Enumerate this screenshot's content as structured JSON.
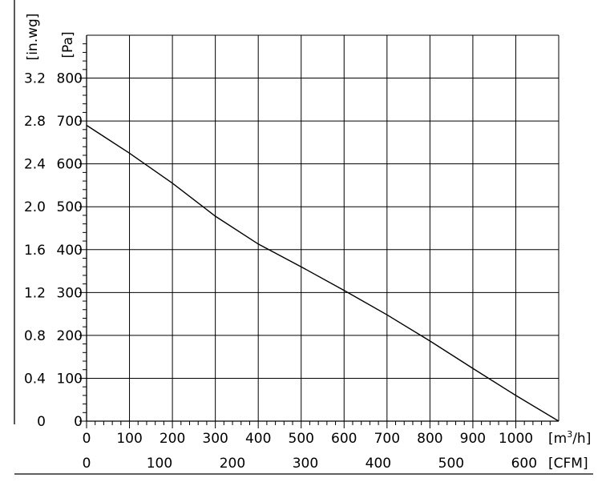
{
  "chart_data": {
    "type": "line",
    "x_primary": {
      "unit_label_prefix": "[m",
      "unit_label_sup": "3",
      "unit_label_suffix": "/h]",
      "range": [
        0,
        1100
      ],
      "ticks": [
        0,
        100,
        200,
        300,
        400,
        500,
        600,
        700,
        800,
        900,
        1000
      ]
    },
    "x_secondary": {
      "unit_label": "[CFM]",
      "ticks": [
        0,
        100,
        200,
        300,
        400,
        500,
        600
      ]
    },
    "y_primary": {
      "unit_label": "[Pa]",
      "range": [
        0,
        900
      ],
      "ticks": [
        0,
        100,
        200,
        300,
        400,
        500,
        600,
        700,
        800
      ]
    },
    "y_secondary": {
      "unit_label": "[in.wg]",
      "ticks": [
        "0",
        "0.4",
        "0.8",
        "1.2",
        "1.6",
        "2.0",
        "2.4",
        "2.8",
        "3.2"
      ]
    },
    "grid": true,
    "series": [
      {
        "x": [
          0,
          100,
          200,
          300,
          400,
          500,
          600,
          700,
          800,
          900,
          1000,
          1100
        ],
        "y": [
          690,
          625,
          555,
          478,
          413,
          360,
          305,
          248,
          187,
          123,
          60,
          0
        ]
      }
    ]
  }
}
